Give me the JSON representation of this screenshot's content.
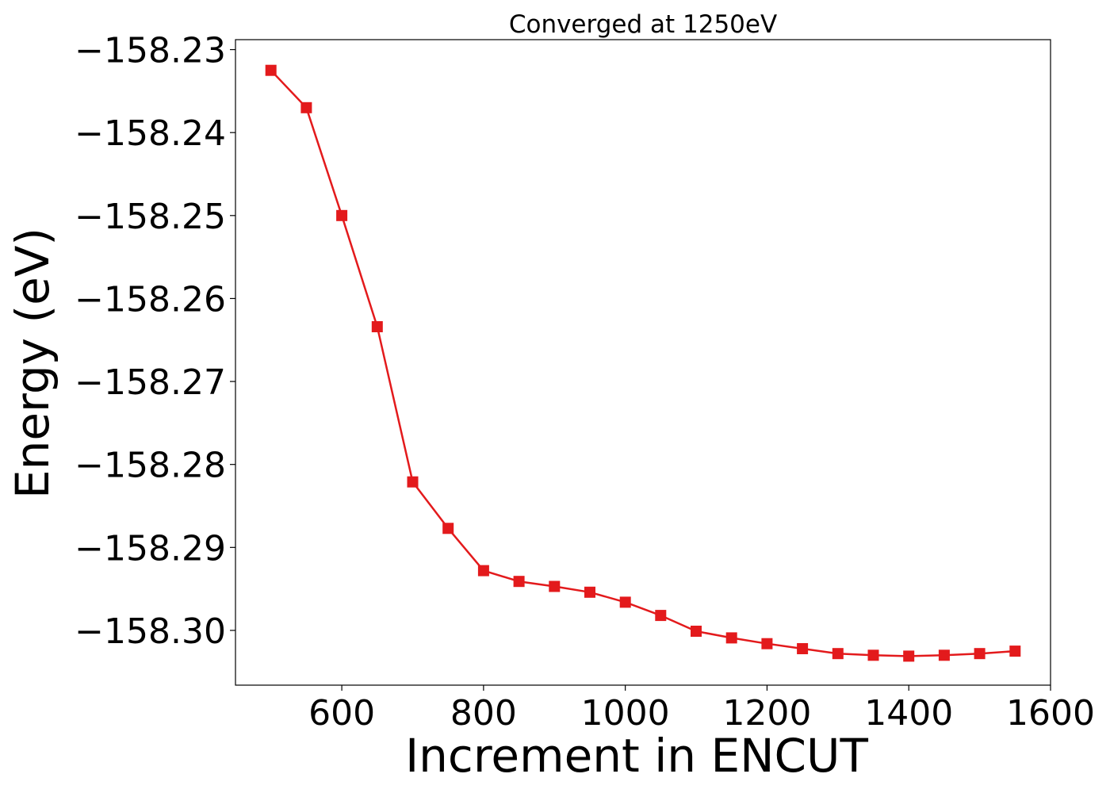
{
  "chart_data": {
    "type": "line",
    "title": "Converged at 1250eV",
    "xlabel": "Increment in ENCUT",
    "ylabel": "Energy (eV)",
    "xlim": [
      450,
      1600
    ],
    "ylim": [
      -158.3066,
      -158.2288
    ],
    "x_ticks": [
      600,
      800,
      1000,
      1200,
      1400,
      1600
    ],
    "x_tick_labels": [
      "600",
      "800",
      "1000",
      "1200",
      "1400",
      "1600"
    ],
    "y_ticks": [
      -158.23,
      -158.24,
      -158.25,
      -158.26,
      -158.27,
      -158.28,
      -158.29,
      -158.3
    ],
    "y_tick_labels": [
      "−158.23",
      "−158.24",
      "−158.25",
      "−158.26",
      "−158.27",
      "−158.28",
      "−158.29",
      "−158.30"
    ],
    "grid": false,
    "series": [
      {
        "name": "Energy",
        "color": "#e31a1c",
        "marker": "square",
        "x": [
          500,
          550,
          600,
          650,
          700,
          750,
          800,
          850,
          900,
          950,
          1000,
          1050,
          1100,
          1150,
          1200,
          1250,
          1300,
          1350,
          1400,
          1450,
          1500,
          1550
        ],
        "y": [
          -158.2325,
          -158.237,
          -158.25,
          -158.2634,
          -158.2821,
          -158.2877,
          -158.2928,
          -158.2941,
          -158.2947,
          -158.2954,
          -158.2966,
          -158.2982,
          -158.3001,
          -158.3009,
          -158.3016,
          -158.3022,
          -158.3028,
          -158.303,
          -158.3031,
          -158.303,
          -158.3028,
          -158.3025
        ]
      }
    ]
  }
}
